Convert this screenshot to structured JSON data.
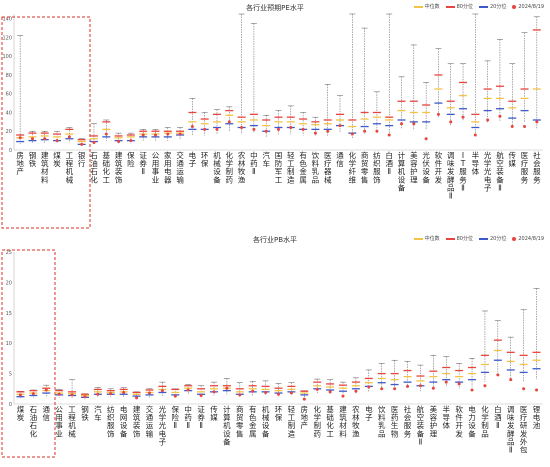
{
  "colors": {
    "median": "#f5c343",
    "p80": "#e8453c",
    "p20": "#3e5bcc",
    "current": "#e8453c",
    "range": "#555555",
    "highlight": "#d93025"
  },
  "charts": [
    {
      "id": "top",
      "title": "各行业预期PE水平",
      "legend": [
        "中位数",
        "80分位",
        "20分位",
        "2024/8/19"
      ],
      "yticks": [
        "140",
        "120",
        "100",
        "80",
        "60",
        "40",
        "20",
        "0"
      ]
    },
    {
      "id": "bottom",
      "title": "各行业PB水平",
      "legend": [
        "中位数",
        "80分位",
        "20分位",
        "2024/8/19"
      ],
      "yticks": [
        "25",
        "20",
        "15",
        "10",
        "5",
        "0"
      ]
    }
  ],
  "chart_data": [
    {
      "type": "scatter",
      "title": "各行业预期PE水平",
      "ylim": [
        0,
        145
      ],
      "legend": [
        "中位数",
        "80分位",
        "20分位",
        "2024/8/19"
      ],
      "categories": [
        "房地产",
        "钢铁",
        "建筑材料",
        "煤炭",
        "工程机械",
        "银行",
        "石油石化",
        "基础化工",
        "建筑装饰",
        "保险",
        "证券Ⅱ",
        "公用事业",
        "家用电器",
        "交通运输",
        "电子",
        "环保",
        "机械设备",
        "化学制药",
        "农林牧渔",
        "中药Ⅱ",
        "汽车",
        "国防军工",
        "轻工制造",
        "有色金属",
        "饮料乳品",
        "医疗器械",
        "通信",
        "化学纤维",
        "商贸零售",
        "纺织服饰",
        "白酒Ⅱ",
        "计算机设备",
        "美容护理",
        "光伏设备",
        "软件开发",
        "调味发酵品Ⅱ",
        "IT服务Ⅱ",
        "半导体",
        "光学光电子",
        "航空装备Ⅱ",
        "传媒",
        "医疗服务",
        "社会服务"
      ],
      "series": [
        {
          "name": "中位数",
          "values": [
            13,
            14,
            15,
            14,
            17,
            9,
            12,
            22,
            13,
            14,
            17,
            17,
            18,
            18,
            30,
            28,
            30,
            37,
            30,
            32,
            26,
            30,
            30,
            28,
            27,
            28,
            32,
            25,
            33,
            35,
            32,
            42,
            40,
            40,
            65,
            45,
            58,
            30,
            55,
            55,
            45,
            55,
            65
          ]
        },
        {
          "name": "80分位",
          "values": [
            16,
            18,
            18,
            17,
            22,
            11,
            15,
            30,
            15,
            16,
            20,
            20,
            20,
            20,
            40,
            33,
            38,
            42,
            35,
            38,
            32,
            35,
            35,
            33,
            30,
            32,
            38,
            32,
            40,
            40,
            35,
            52,
            52,
            48,
            80,
            52,
            72,
            38,
            65,
            68,
            52,
            65,
            128
          ]
        },
        {
          "name": "20分位",
          "values": [
            9,
            10,
            11,
            10,
            12,
            6,
            9,
            14,
            10,
            10,
            14,
            14,
            14,
            16,
            22,
            22,
            24,
            28,
            24,
            26,
            20,
            24,
            24,
            22,
            22,
            22,
            26,
            18,
            25,
            28,
            26,
            32,
            30,
            30,
            50,
            38,
            44,
            24,
            42,
            44,
            34,
            42,
            32
          ]
        },
        {
          "name": "2024/8/19",
          "values": [
            13,
            12,
            12,
            10,
            14,
            6,
            8,
            17,
            9,
            10,
            16,
            16,
            17,
            17,
            25,
            22,
            22,
            30,
            24,
            22,
            20,
            22,
            24,
            22,
            18,
            20,
            26,
            17,
            20,
            20,
            16,
            28,
            28,
            12,
            38,
            30,
            35,
            16,
            32,
            36,
            25,
            25,
            30
          ]
        }
      ],
      "range_high": [
        122,
        20,
        20,
        20,
        24,
        12,
        28,
        32,
        18,
        18,
        22,
        22,
        24,
        24,
        55,
        40,
        43,
        46,
        145,
        135,
        37,
        42,
        47,
        40,
        35,
        70,
        58,
        145,
        130,
        62,
        145,
        78,
        112,
        72,
        108,
        92,
        92,
        145,
        95,
        118,
        92,
        125,
        142
      ]
    },
    {
      "type": "scatter",
      "title": "各行业PB水平",
      "ylim": [
        0,
        25
      ],
      "legend": [
        "中位数",
        "80分位",
        "20分位",
        "2024/8/19"
      ],
      "categories": [
        "煤炭",
        "石油石化",
        "通信",
        "公用事业",
        "工程机械",
        "钢铁",
        "汽车",
        "纺织服饰",
        "电网设备",
        "建筑装饰",
        "交通运输",
        "光学光电子",
        "保险Ⅱ",
        "中药Ⅱ",
        "证券Ⅱ",
        "传媒",
        "计算机设备",
        "商贸零售",
        "有色金属",
        "机械设备",
        "环保",
        "轻工制造",
        "房地产",
        "化学制药",
        "基础化工",
        "建筑材料",
        "农林牧渔",
        "电子",
        "饮料乳品",
        "医药生物",
        "社会服务",
        "航空装备Ⅱ",
        "美容护理",
        "半导体",
        "软件开发",
        "电力设备",
        "化学制品",
        "白酒Ⅱ",
        "调味发酵品Ⅱ",
        "医疗研发外包",
        "锂电池"
      ],
      "series": [
        {
          "name": "中位数",
          "values": [
            1.6,
            1.8,
            2.2,
            1.8,
            1.7,
            1.4,
            2.0,
            1.9,
            2.0,
            1.6,
            1.9,
            2.4,
            1.9,
            2.6,
            2.0,
            2.5,
            2.6,
            2.0,
            2.5,
            2.4,
            2.2,
            2.4,
            1.8,
            3.0,
            2.8,
            2.6,
            3.0,
            3.5,
            4.2,
            4.0,
            4.5,
            3.8,
            4.5,
            5.0,
            4.5,
            5.0,
            6.5,
            8.8,
            7.0,
            6.5,
            7.2
          ]
        },
        {
          "name": "80分位",
          "values": [
            2.0,
            2.2,
            2.6,
            2.2,
            2.0,
            1.6,
            2.4,
            2.2,
            2.4,
            1.9,
            2.3,
            2.9,
            2.4,
            3.0,
            2.5,
            3.0,
            3.0,
            2.5,
            3.0,
            2.9,
            2.6,
            2.9,
            2.1,
            3.6,
            3.3,
            3.1,
            3.6,
            4.2,
            5.0,
            5.0,
            5.5,
            4.6,
            5.4,
            6.0,
            5.5,
            6.0,
            8.0,
            10.5,
            8.5,
            8.0,
            8.5
          ]
        },
        {
          "name": "20分位",
          "values": [
            1.2,
            1.4,
            1.8,
            1.5,
            1.4,
            1.1,
            1.6,
            1.6,
            1.6,
            1.3,
            1.5,
            1.9,
            1.5,
            2.2,
            1.6,
            2.0,
            2.2,
            1.6,
            2.0,
            2.0,
            1.8,
            2.0,
            1.5,
            2.5,
            2.3,
            2.1,
            2.5,
            2.9,
            3.5,
            3.2,
            3.6,
            3.0,
            3.6,
            4.0,
            3.6,
            4.0,
            5.2,
            7.2,
            5.6,
            5.2,
            5.8
          ]
        },
        {
          "name": "2024/8/19",
          "values": [
            1.5,
            1.7,
            2.3,
            1.6,
            1.5,
            1.2,
            1.6,
            1.7,
            1.9,
            1.0,
            1.8,
            2.2,
            1.3,
            2.3,
            1.4,
            2.0,
            2.6,
            1.5,
            2.1,
            1.9,
            1.6,
            1.8,
            0.8,
            2.4,
            2.0,
            1.3,
            2.1,
            2.8,
            2.5,
            2.5,
            2.9,
            3.0,
            2.6,
            3.6,
            3.3,
            2.3,
            3.0,
            4.8,
            4.0,
            2.5,
            2.3
          ]
        }
      ],
      "range_high": [
        2.1,
        2.3,
        3.1,
        2.4,
        4.0,
        1.7,
        2.7,
        2.5,
        2.7,
        2.0,
        2.5,
        3.6,
        2.5,
        3.2,
        3.0,
        3.6,
        4.2,
        3.5,
        3.7,
        3.8,
        3.4,
        3.5,
        2.2,
        4.1,
        4.0,
        3.6,
        4.3,
        5.6,
        6.7,
        7.2,
        7.0,
        6.4,
        8.0,
        7.8,
        6.7,
        7.5,
        15.3,
        13.7,
        11.0,
        15.5,
        19.0
      ]
    }
  ]
}
